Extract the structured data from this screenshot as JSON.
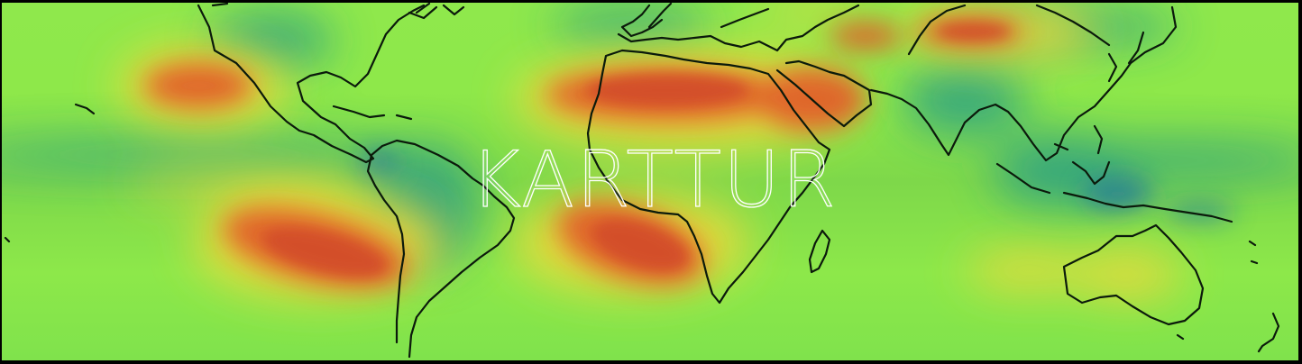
{
  "map": {
    "watermark_text": "KARTTUR",
    "colormap": [
      "#1a5aa0",
      "#1f9e89",
      "#7fd34e",
      "#9ff04a",
      "#f2d23a",
      "#e8602a",
      "#d44a2a"
    ],
    "coastline_color": "#0b1a0b",
    "frame_color": "#000000"
  }
}
